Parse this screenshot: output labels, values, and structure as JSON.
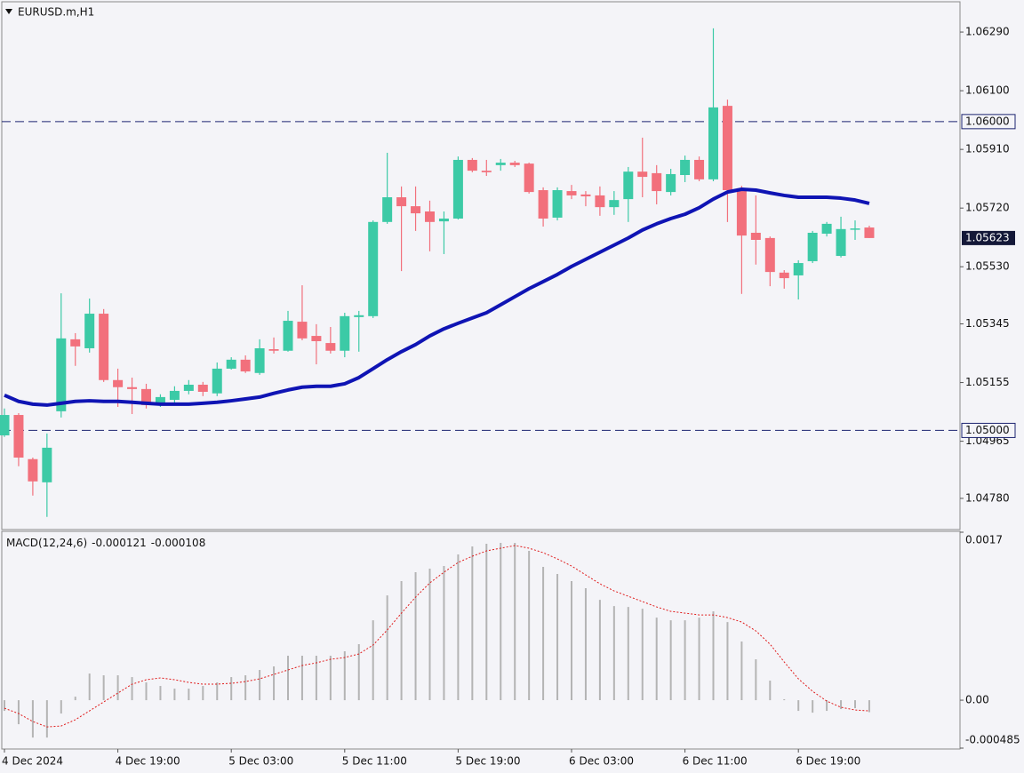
{
  "chart_data": [
    {
      "type": "candlestick",
      "title": "EURUSD.m,H1",
      "categories": [
        "4 Dec 2024",
        null,
        null,
        null,
        null,
        null,
        null,
        null,
        "4 Dec 19:00",
        null,
        null,
        null,
        null,
        null,
        null,
        null,
        "5 Dec 03:00",
        null,
        null,
        null,
        null,
        null,
        null,
        null,
        "5 Dec 11:00",
        null,
        null,
        null,
        null,
        null,
        null,
        null,
        "5 Dec 19:00",
        null,
        null,
        null,
        null,
        null,
        null,
        null,
        "6 Dec 03:00",
        null,
        null,
        null,
        null,
        null,
        null,
        null,
        "6 Dec 11:00",
        null,
        null,
        null,
        null,
        null,
        null,
        null,
        "6 Dec 19:00",
        null,
        null,
        null,
        null,
        null
      ],
      "open": [
        1.04984,
        1.0505,
        1.04907,
        1.04832,
        1.05062,
        1.05295,
        1.05266,
        1.05378,
        1.05163,
        1.0514,
        1.05134,
        1.05085,
        1.05099,
        1.05128,
        1.05148,
        1.0512,
        1.052,
        1.05229,
        1.05186,
        1.05263,
        1.05258,
        1.05352,
        1.05306,
        1.05283,
        1.05258,
        1.05367,
        1.0537,
        1.05675,
        1.05755,
        1.05726,
        1.05709,
        1.05677,
        1.05686,
        1.05876,
        1.05841,
        1.05859,
        1.05867,
        1.05864,
        1.05778,
        1.05689,
        1.05775,
        1.05764,
        1.05761,
        1.05723,
        1.05749,
        1.05838,
        1.05833,
        1.05772,
        1.05827,
        1.05876,
        1.05813,
        1.06051,
        1.05784,
        1.0564,
        1.05623,
        1.05511,
        1.05502,
        1.05548,
        1.05637,
        1.05565,
        1.05652,
        1.05657
      ],
      "high": [
        1.05071,
        1.05056,
        1.04912,
        1.0499,
        1.05444,
        1.05315,
        1.05427,
        1.05393,
        1.052,
        1.05171,
        1.05151,
        1.05117,
        1.05143,
        1.05163,
        1.05157,
        1.0522,
        1.05237,
        1.05243,
        1.05295,
        1.05301,
        1.05387,
        1.0547,
        1.05344,
        1.05335,
        1.05381,
        1.05387,
        1.0568,
        1.05899,
        1.0579,
        1.0579,
        1.05744,
        1.05709,
        1.05887,
        1.05882,
        1.05876,
        1.05879,
        1.05873,
        1.05867,
        1.05787,
        1.05787,
        1.05795,
        1.05775,
        1.0579,
        1.05775,
        1.05853,
        1.05948,
        1.05859,
        1.05847,
        1.0589,
        1.05887,
        1.06302,
        1.06071,
        1.05792,
        1.05761,
        1.05628,
        1.05519,
        1.05551,
        1.05646,
        1.05675,
        1.05692,
        1.0568,
        1.05663
      ],
      "low": [
        1.04979,
        1.04884,
        1.04789,
        1.0472,
        1.05042,
        1.05209,
        1.05252,
        1.05157,
        1.05076,
        1.05053,
        1.05071,
        1.05076,
        1.05085,
        1.05117,
        1.05111,
        1.05111,
        1.05197,
        1.05186,
        1.0518,
        1.05249,
        1.05255,
        1.05292,
        1.05214,
        1.05249,
        1.05237,
        1.05255,
        1.05364,
        1.05669,
        1.05516,
        1.05646,
        1.0558,
        1.05571,
        1.05683,
        1.05836,
        1.05824,
        1.05841,
        1.05853,
        1.05767,
        1.0566,
        1.0568,
        1.05749,
        1.05726,
        1.05695,
        1.05698,
        1.05675,
        1.05755,
        1.05732,
        1.05761,
        1.05804,
        1.05807,
        1.05807,
        1.05675,
        1.05442,
        1.05537,
        1.05467,
        1.05459,
        1.05424,
        1.05542,
        1.05628,
        1.0556,
        1.05617,
        1.05623
      ],
      "close": [
        1.0505,
        1.04912,
        1.04835,
        1.04944,
        1.05298,
        1.05272,
        1.05378,
        1.05163,
        1.0514,
        1.05134,
        1.05082,
        1.05108,
        1.05128,
        1.05148,
        1.05125,
        1.052,
        1.05229,
        1.05191,
        1.05266,
        1.05258,
        1.05355,
        1.05298,
        1.05289,
        1.05258,
        1.0537,
        1.05373,
        1.05675,
        1.05755,
        1.05726,
        1.05703,
        1.05675,
        1.05686,
        1.05876,
        1.05841,
        1.05836,
        1.05867,
        1.05859,
        1.05772,
        1.05686,
        1.05778,
        1.05761,
        1.05758,
        1.05723,
        1.05746,
        1.05838,
        1.05821,
        1.05775,
        1.0583,
        1.05876,
        1.05813,
        1.06046,
        1.05778,
        1.05631,
        1.05617,
        1.05513,
        1.05493,
        1.05542,
        1.0564,
        1.05669,
        1.05652,
        1.05654,
        1.05623
      ],
      "up_color": "#3ccaa6",
      "down_color": "#f2707c",
      "ma": {
        "color": "#0f14b4",
        "values": [
          1.05114,
          1.05094,
          1.05085,
          1.05082,
          1.05088,
          1.05094,
          1.05096,
          1.05094,
          1.05094,
          1.05091,
          1.05088,
          1.05085,
          1.05085,
          1.05085,
          1.05088,
          1.05091,
          1.05096,
          1.05102,
          1.05108,
          1.0512,
          1.05131,
          1.0514,
          1.05143,
          1.05143,
          1.05151,
          1.05171,
          1.052,
          1.05229,
          1.05255,
          1.05278,
          1.05306,
          1.05329,
          1.05347,
          1.05364,
          1.05381,
          1.05407,
          1.05433,
          1.05459,
          1.05482,
          1.05505,
          1.05531,
          1.05554,
          1.05577,
          1.056,
          1.05623,
          1.05649,
          1.05669,
          1.05686,
          1.057,
          1.05721,
          1.05749,
          1.05772,
          1.05781,
          1.05778,
          1.05769,
          1.05761,
          1.05755,
          1.05755,
          1.05755,
          1.05752,
          1.05746,
          1.05735
        ]
      },
      "hlines": [
        {
          "value": 1.06,
          "label": "1.06000"
        },
        {
          "value": 1.05,
          "label": "1.05000"
        }
      ],
      "hline_color": "#1c2470",
      "ylim": [
        1.04679,
        1.06388
      ],
      "yticks": [
        {
          "value": 1.0629,
          "label": "1.06290"
        },
        {
          "value": 1.061,
          "label": "1.06100"
        },
        {
          "value": 1.0591,
          "label": "1.05910"
        },
        {
          "value": 1.0572,
          "label": "1.05720"
        },
        {
          "value": 1.0553,
          "label": "1.05530"
        },
        1.05345,
        1.05155,
        1.04965,
        {
          "value": 1.0478,
          "label": "1.04780"
        }
      ]
    },
    {
      "type": "macd",
      "title": "MACD(12,24,6)",
      "histogram": {
        "color": "#b4b4b4",
        "values": [
          -0.000108,
          -0.000243,
          -0.000378,
          -0.000378,
          -0.000135,
          3.6e-05,
          0.00027,
          0.000252,
          0.000252,
          0.000234,
          0.00018,
          0.000144,
          0.000117,
          0.000117,
          0.000144,
          0.00018,
          0.000234,
          0.000252,
          0.000306,
          0.000342,
          0.00045,
          0.00045,
          0.00045,
          0.00045,
          0.000495,
          0.000567,
          0.000809,
          0.001061,
          0.001205,
          0.001295,
          0.001331,
          0.001358,
          0.001475,
          0.001556,
          0.001583,
          0.001592,
          0.001592,
          0.001511,
          0.001349,
          0.001277,
          0.001205,
          0.001133,
          0.001016,
          0.000953,
          0.000944,
          0.000926,
          0.000836,
          0.000809,
          0.000809,
          0.000836,
          0.000899,
          0.000791,
          0.000594,
          0.000414,
          0.000198,
          1e-05,
          -0.000108,
          -0.000126,
          -0.000108,
          -9e-05,
          -8.1e-05,
          -0.000121
        ]
      },
      "signal": {
        "color": "#e01c1c",
        "values": [
          -8.1e-05,
          -0.000135,
          -0.000216,
          -0.00027,
          -0.000261,
          -0.000198,
          -0.000108,
          -1.8e-05,
          7.2e-05,
          0.000162,
          0.000207,
          0.000225,
          0.000207,
          0.00018,
          0.000162,
          0.000162,
          0.000171,
          0.000189,
          0.000216,
          0.000261,
          0.000306,
          0.000351,
          0.000378,
          0.000414,
          0.000432,
          0.000468,
          0.000558,
          0.00071,
          0.000881,
          0.001043,
          0.001187,
          0.001295,
          0.001394,
          0.001457,
          0.001511,
          0.001538,
          0.001565,
          0.001538,
          0.001493,
          0.00143,
          0.001358,
          0.001268,
          0.001178,
          0.001106,
          0.001052,
          0.000998,
          0.000944,
          0.000899,
          0.000881,
          0.000863,
          0.000863,
          0.000836,
          0.000791,
          0.000701,
          0.000567,
          0.000387,
          0.000216,
          9e-05,
          -9e-06,
          -7.2e-05,
          -9.9e-05,
          -0.000108
        ]
      },
      "ylim": [
        -0.000485,
        0.0017
      ],
      "yticks": [
        0.0017,
        {
          "value": 0,
          "label": "0.00"
        },
        -0.000485
      ]
    }
  ]
}
